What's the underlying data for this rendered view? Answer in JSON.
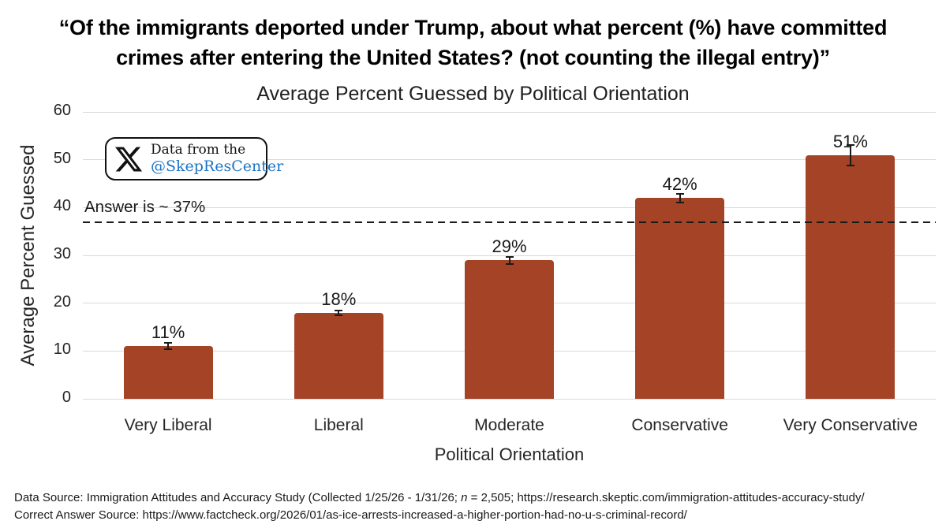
{
  "header": {
    "question_lines": [
      "“Of the immigrants deported under Trump, about what percent (%) have committed",
      "crimes after entering the United States? (not counting the illegal entry)”"
    ]
  },
  "chart_data": {
    "type": "bar",
    "title": "Average Percent Guessed by Political Orientation",
    "xlabel": "Political Orientation",
    "ylabel": "Average Percent Guessed",
    "categories": [
      "Very Liberal",
      "Liberal",
      "Moderate",
      "Conservative",
      "Very Conservative"
    ],
    "values": [
      11,
      18,
      29,
      42,
      51
    ],
    "data_labels": [
      "11%",
      "18%",
      "29%",
      "42%",
      "51%"
    ],
    "error_bars": [
      0.8,
      0.7,
      0.9,
      1.1,
      2.3
    ],
    "ylim": [
      0,
      60
    ],
    "yticks": [
      0,
      10,
      20,
      30,
      40,
      50,
      60
    ],
    "grid": true,
    "bar_color": "#A54327",
    "gridline_color": "#d9d9d9",
    "reference_line": {
      "value": 37,
      "label": "Answer is ~ 37%",
      "style": "dashed",
      "color": "#1a1a1a"
    }
  },
  "badge": {
    "icon": "x-logo-icon",
    "line1": "Data from the",
    "handle": "@SkepResCenter",
    "handle_color": "#1D74C4"
  },
  "footer": {
    "line1_prefix": "Data Source: Immigration Attitudes and Accuracy Study (Collected 1/25/26 - 1/31/26; ",
    "line1_n": "n",
    "line1_suffix": " = 2,505; https://research.skeptic.com/immigration-attitudes-accuracy-study/",
    "line2": "Correct Answer Source: https://www.factcheck.org/2026/01/as-ice-arrests-increased-a-higher-portion-had-no-u-s-criminal-record/"
  }
}
